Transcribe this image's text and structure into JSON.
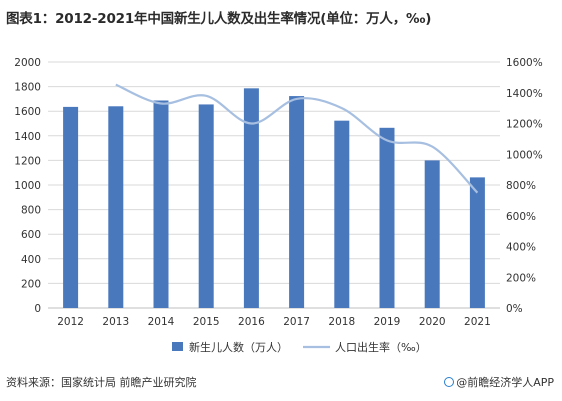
{
  "title": "图表1：2012-2021年中国新生儿人数及出生率情况(单位：万人，‰)",
  "footer": {
    "source": "资料来源：国家统计局 前瞻产业研究院",
    "brand": "@前瞻经济学人APP"
  },
  "colors": {
    "bar": "#4a78bd",
    "line": "#a7bfe0",
    "grid": "#d9d9d9",
    "axis": "#bfbfbf"
  },
  "chart_data": {
    "type": "bar",
    "categories": [
      "2012",
      "2013",
      "2014",
      "2015",
      "2016",
      "2017",
      "2018",
      "2019",
      "2020",
      "2021"
    ],
    "series": [
      {
        "name": "新生儿人数（万人）",
        "type": "bar",
        "axis": "left",
        "values": [
          1635,
          1640,
          1687,
          1655,
          1786,
          1723,
          1523,
          1465,
          1200,
          1062
        ]
      },
      {
        "name": "人口出生率（‰）",
        "type": "line",
        "axis": "right",
        "values": [
          null,
          1453,
          1330,
          1380,
          1200,
          1360,
          1300,
          1090,
          1050,
          750
        ]
      }
    ],
    "ylim": [
      0,
      2000
    ],
    "yticks": [
      0,
      200,
      400,
      600,
      800,
      1000,
      1200,
      1400,
      1600,
      1800,
      2000
    ],
    "y2lim": [
      0,
      1600
    ],
    "y2ticks": [
      "0%",
      "200%",
      "400%",
      "600%",
      "800%",
      "1000%",
      "1200%",
      "1400%",
      "1600%"
    ],
    "grid": true,
    "legend": "bottom"
  }
}
